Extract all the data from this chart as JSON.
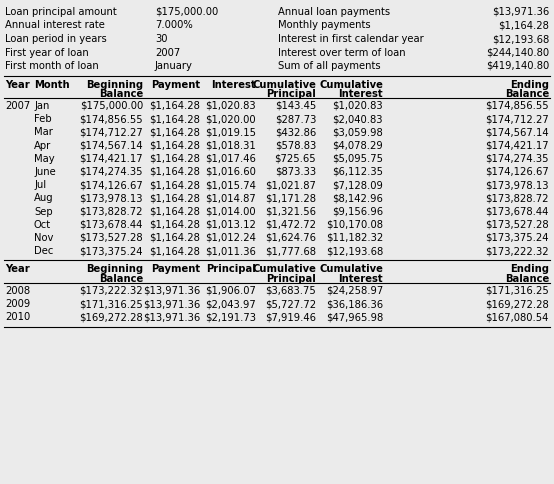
{
  "bg_color": "#ebebeb",
  "text_color": "#000000",
  "summary_labels_left": [
    "Loan principal amount",
    "Annual interest rate",
    "Loan period in years",
    "First year of loan",
    "First month of loan"
  ],
  "summary_values_left": [
    "$175,000.00",
    "7.000%",
    "30",
    "2007",
    "January"
  ],
  "summary_labels_right": [
    "Annual loan payments",
    "Monthly payments",
    "Interest in first calendar year",
    "Interest over term of loan",
    "Sum of all payments"
  ],
  "summary_values_right": [
    "$13,971.36",
    "$1,164.28",
    "$12,193.68",
    "$244,140.80",
    "$419,140.80"
  ],
  "header1": [
    "Year",
    "Month",
    "Beginning\nBalance",
    "Payment",
    "Interest",
    "Cumulative\nPrincipal",
    "Cumulative\nInterest",
    "Ending\nBalance"
  ],
  "monthly_data": [
    [
      "2007",
      "Jan",
      "$175,000.00",
      "$1,164.28",
      "$1,020.83",
      "$143.45",
      "$1,020.83",
      "$174,856.55"
    ],
    [
      "",
      "Feb",
      "$174,856.55",
      "$1,164.28",
      "$1,020.00",
      "$287.73",
      "$2,040.83",
      "$174,712.27"
    ],
    [
      "",
      "Mar",
      "$174,712.27",
      "$1,164.28",
      "$1,019.15",
      "$432.86",
      "$3,059.98",
      "$174,567.14"
    ],
    [
      "",
      "Apr",
      "$174,567.14",
      "$1,164.28",
      "$1,018.31",
      "$578.83",
      "$4,078.29",
      "$174,421.17"
    ],
    [
      "",
      "May",
      "$174,421.17",
      "$1,164.28",
      "$1,017.46",
      "$725.65",
      "$5,095.75",
      "$174,274.35"
    ],
    [
      "",
      "June",
      "$174,274.35",
      "$1,164.28",
      "$1,016.60",
      "$873.33",
      "$6,112.35",
      "$174,126.67"
    ],
    [
      "",
      "Jul",
      "$174,126.67",
      "$1,164.28",
      "$1,015.74",
      "$1,021.87",
      "$7,128.09",
      "$173,978.13"
    ],
    [
      "",
      "Aug",
      "$173,978.13",
      "$1,164.28",
      "$1,014.87",
      "$1,171.28",
      "$8,142.96",
      "$173,828.72"
    ],
    [
      "",
      "Sep",
      "$173,828.72",
      "$1,164.28",
      "$1,014.00",
      "$1,321.56",
      "$9,156.96",
      "$173,678.44"
    ],
    [
      "",
      "Oct",
      "$173,678.44",
      "$1,164.28",
      "$1,013.12",
      "$1,472.72",
      "$10,170.08",
      "$173,527.28"
    ],
    [
      "",
      "Nov",
      "$173,527.28",
      "$1,164.28",
      "$1,012.24",
      "$1,624.76",
      "$11,182.32",
      "$173,375.24"
    ],
    [
      "",
      "Dec",
      "$173,375.24",
      "$1,164.28",
      "$1,011.36",
      "$1,777.68",
      "$12,193.68",
      "$173,222.32"
    ]
  ],
  "header2_line1": [
    "Year",
    "",
    "Beginning",
    "Payment",
    "Principal",
    "Cumulative",
    "Cumulative",
    "Ending"
  ],
  "header2_line2": [
    "",
    "",
    "Balance",
    "",
    "",
    "Principal",
    "Interest",
    "Balance"
  ],
  "annual_data": [
    [
      "2008",
      "",
      "$173,222.32",
      "$13,971.36",
      "$1,906.07",
      "$3,683.75",
      "$24,258.97",
      "$171,316.25"
    ],
    [
      "2009",
      "",
      "$171,316.25",
      "$13,971.36",
      "$2,043.97",
      "$5,727.72",
      "$36,186.36",
      "$169,272.28"
    ],
    [
      "2010",
      "",
      "$169,272.28",
      "$13,971.36",
      "$2,191.73",
      "$7,919.46",
      "$47,965.98",
      "$167,080.54"
    ]
  ],
  "font_size": 7.2,
  "font_family": "DejaVu Sans"
}
